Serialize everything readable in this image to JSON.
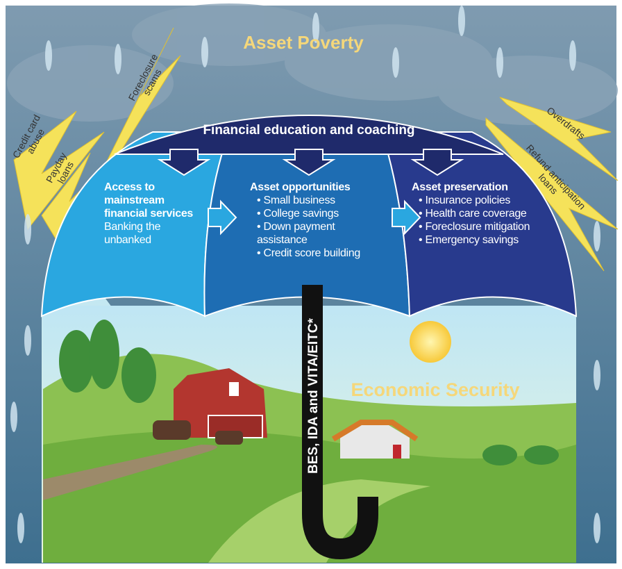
{
  "title": "Asset Poverty",
  "canopy": "Financial education and coaching",
  "panels": [
    {
      "title": "Access to mainstream financial services",
      "items": [
        "Banking the unbanked"
      ]
    },
    {
      "title": "Asset opportunities",
      "items": [
        "• Small business",
        "• College savings",
        "• Down payment assistance",
        "• Credit score building"
      ]
    },
    {
      "title": "Asset preservation",
      "items": [
        "• Insurance policies",
        "• Health care coverage",
        "• Foreclosure mitigation",
        "• Emergency savings"
      ]
    }
  ],
  "handle": "BES, IDA and VITA/EITC*",
  "ground": "Economic Security",
  "threats": [
    "Credit card abuse",
    "Payday loans",
    "Foreclosure scams",
    "Overdrafts",
    "Refund anticipation loans"
  ]
}
